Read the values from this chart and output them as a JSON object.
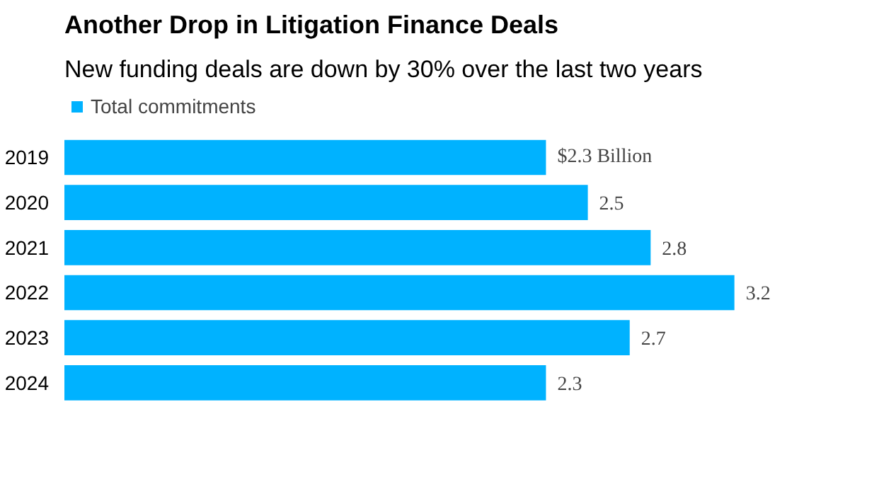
{
  "chart_data": {
    "type": "bar",
    "orientation": "horizontal",
    "title": "Another Drop in Litigation Finance Deals",
    "subtitle": "New funding deals are down by 30% over the last two years",
    "categories": [
      "2019",
      "2020",
      "2021",
      "2022",
      "2023",
      "2024"
    ],
    "series": [
      {
        "name": "Total commitments",
        "color": "#00b2ff",
        "values": [
          2.3,
          2.5,
          2.8,
          3.2,
          2.7,
          2.3
        ],
        "value_labels": [
          "$2.3 Billion",
          "2.5",
          "2.8",
          "3.2",
          "2.7",
          "2.3"
        ]
      }
    ],
    "legend": "top left",
    "grid": false
  }
}
